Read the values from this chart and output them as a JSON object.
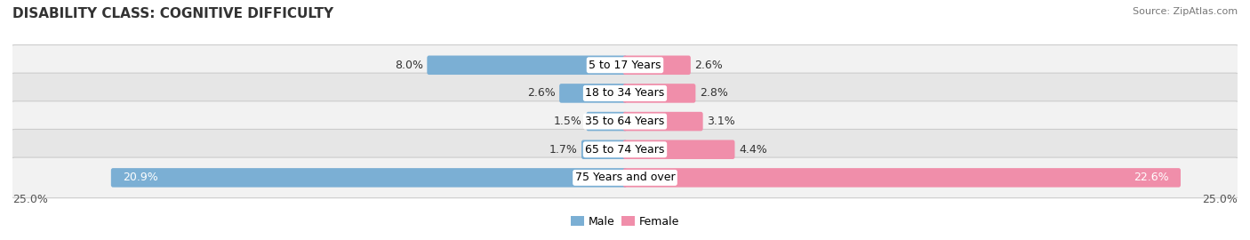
{
  "title": "DISABILITY CLASS: COGNITIVE DIFFICULTY",
  "source": "Source: ZipAtlas.com",
  "categories": [
    "5 to 17 Years",
    "18 to 34 Years",
    "35 to 64 Years",
    "65 to 74 Years",
    "75 Years and over"
  ],
  "male_values": [
    8.0,
    2.6,
    1.5,
    1.7,
    20.9
  ],
  "female_values": [
    2.6,
    2.8,
    3.1,
    4.4,
    22.6
  ],
  "male_color": "#7bafd4",
  "female_color": "#f08eaa",
  "row_bg_light": "#f2f2f2",
  "row_bg_dark": "#e6e6e6",
  "row_border_color": "#cccccc",
  "max_val": 25.0,
  "axis_label_left": "25.0%",
  "axis_label_right": "25.0%",
  "title_fontsize": 11,
  "label_fontsize": 9,
  "source_fontsize": 8,
  "tick_fontsize": 9
}
